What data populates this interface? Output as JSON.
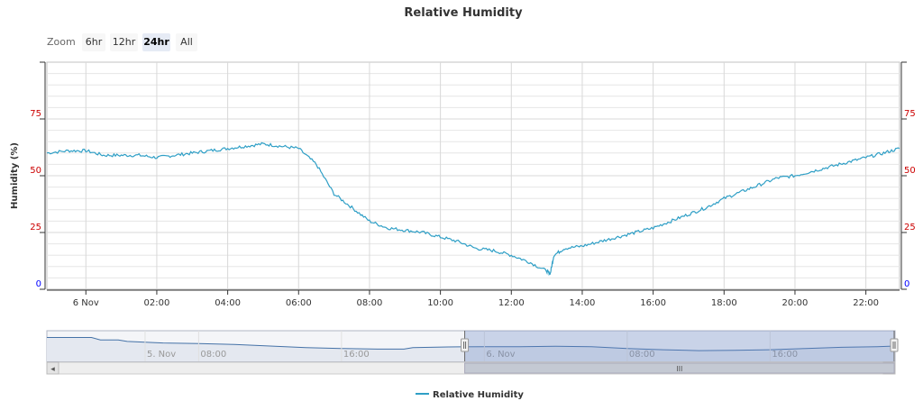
{
  "chart_data": {
    "type": "line",
    "title": "Relative Humidity",
    "ylabel": "Humidity (%)",
    "xlabel": "",
    "ylim": [
      0,
      100
    ],
    "y_ticks_left": [
      0,
      25,
      50,
      75
    ],
    "y_ticks_right": [
      0,
      25,
      50,
      75
    ],
    "y_tick_colors": {
      "0": "#0000ff",
      "25": "#cc0000",
      "50": "#cc0000",
      "75": "#cc0000"
    },
    "x_ticks": [
      {
        "t": 0,
        "label": "6 Nov"
      },
      {
        "t": 2,
        "label": "02:00"
      },
      {
        "t": 4,
        "label": "04:00"
      },
      {
        "t": 6,
        "label": "06:00"
      },
      {
        "t": 8,
        "label": "08:00"
      },
      {
        "t": 10,
        "label": "10:00"
      },
      {
        "t": 12,
        "label": "12:00"
      },
      {
        "t": 14,
        "label": "14:00"
      },
      {
        "t": 16,
        "label": "16:00"
      },
      {
        "t": 18,
        "label": "18:00"
      },
      {
        "t": 20,
        "label": "20:00"
      },
      {
        "t": 22,
        "label": "22:00"
      }
    ],
    "x_unit": "hours after 6 Nov 00:00",
    "xlim": [
      -1.1,
      22.95
    ],
    "grid": true,
    "legend": "bottom-center",
    "series": [
      {
        "name": "Relative Humidity",
        "color": "#2f9fc6",
        "x": [
          -1.1,
          -0.5,
          0,
          0.5,
          1,
          1.5,
          2,
          2.5,
          3,
          3.5,
          4,
          4.5,
          5,
          5.5,
          6,
          6.5,
          7,
          7.5,
          8,
          8.5,
          9,
          9.5,
          10,
          10.5,
          11,
          11.5,
          12,
          12.5,
          13,
          13.1,
          13.2,
          13.5,
          14,
          14.5,
          15,
          15.5,
          16,
          16.5,
          17,
          17.5,
          18,
          18.5,
          19,
          19.5,
          20,
          20.5,
          21,
          21.5,
          22,
          22.5,
          22.95
        ],
        "values": [
          60,
          61,
          61,
          59,
          59,
          59,
          58,
          59,
          60,
          61,
          62,
          63,
          64,
          63,
          62,
          55,
          42,
          36,
          30,
          27,
          26,
          25,
          23,
          21,
          18,
          17,
          15,
          12,
          8,
          7,
          15,
          18,
          19,
          21,
          23,
          25,
          27,
          30,
          33,
          36,
          40,
          43,
          46,
          49,
          50,
          52,
          54,
          56,
          58,
          60,
          62
        ]
      }
    ]
  },
  "zoom": {
    "label": "Zoom",
    "buttons": [
      {
        "label": "6hr",
        "active": false
      },
      {
        "label": "12hr",
        "active": false
      },
      {
        "label": "24hr",
        "active": true
      },
      {
        "label": "All",
        "active": false
      }
    ]
  },
  "navigator": {
    "x_ticks": [
      {
        "t": -19,
        "label": "5. Nov"
      },
      {
        "t": -16,
        "label": "08:00"
      },
      {
        "t": -8,
        "label": "16:00"
      },
      {
        "t": 0,
        "label": "6. Nov"
      },
      {
        "t": 8,
        "label": "08:00"
      },
      {
        "t": 16,
        "label": "16:00"
      }
    ],
    "xlim": [
      -24.5,
      23
    ],
    "selected_range": [
      -1.1,
      22.95
    ],
    "scrollbar_grip": "III",
    "left_arrow": "◂",
    "right_arrow": "▸",
    "series_x": [
      -24.5,
      -22,
      -21.5,
      -20.5,
      -20,
      -18,
      -16,
      -14,
      -12,
      -10,
      -8,
      -6,
      -4.5,
      -4,
      -2,
      0,
      2,
      4,
      6,
      8,
      10,
      12,
      14,
      16,
      18,
      20,
      22,
      23
    ],
    "series_values": [
      78,
      78,
      70,
      70,
      65,
      60,
      58,
      55,
      50,
      45,
      42,
      40,
      40,
      45,
      47,
      48,
      48,
      49,
      48,
      42,
      38,
      35,
      36,
      38,
      42,
      46,
      48,
      50
    ]
  }
}
